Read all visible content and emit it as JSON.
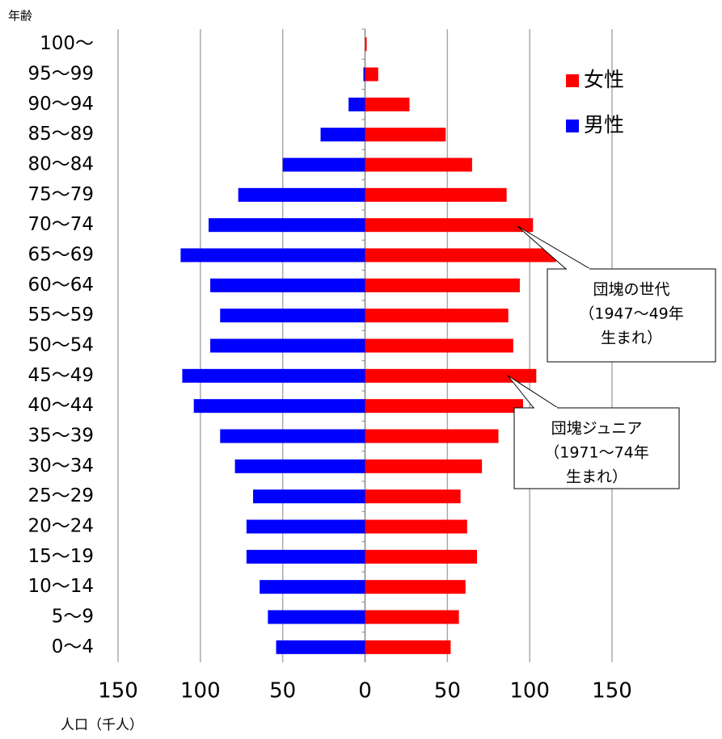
{
  "chart_data": {
    "type": "pyramid",
    "y_axis_title": "年齢",
    "x_axis_title": "人口（千人）",
    "categories": [
      "100～",
      "95～99",
      "90～94",
      "85～89",
      "80～84",
      "75～79",
      "70～74",
      "65～69",
      "60～64",
      "55～59",
      "50～54",
      "45～49",
      "40～44",
      "35～39",
      "30～34",
      "25～29",
      "20～24",
      "15～19",
      "10～14",
      "5～9",
      "0～4"
    ],
    "series": [
      {
        "name": "女性",
        "color": "#ff0000",
        "values": [
          1,
          8,
          27,
          49,
          65,
          86,
          102,
          116,
          94,
          87,
          90,
          104,
          96,
          81,
          71,
          58,
          62,
          68,
          61,
          57,
          52
        ]
      },
      {
        "name": "男性",
        "color": "#0000ff",
        "values": [
          0,
          1,
          10,
          27,
          50,
          77,
          95,
          112,
          94,
          88,
          94,
          111,
          104,
          88,
          79,
          68,
          72,
          72,
          64,
          59,
          54
        ]
      }
    ],
    "xlim": [
      -150,
      150
    ],
    "xticks": [
      {
        "value": -150,
        "label": "150"
      },
      {
        "value": -100,
        "label": "100"
      },
      {
        "value": -50,
        "label": "50"
      },
      0,
      50,
      100,
      150
    ],
    "grid": true,
    "legend": "upper right",
    "annotations": [
      {
        "lines": [
          "団塊の世代",
          "（1947～49年",
          "生まれ）"
        ]
      },
      {
        "lines": [
          "団塊ジュニア",
          "（1971～74年",
          "生まれ）"
        ]
      }
    ]
  }
}
